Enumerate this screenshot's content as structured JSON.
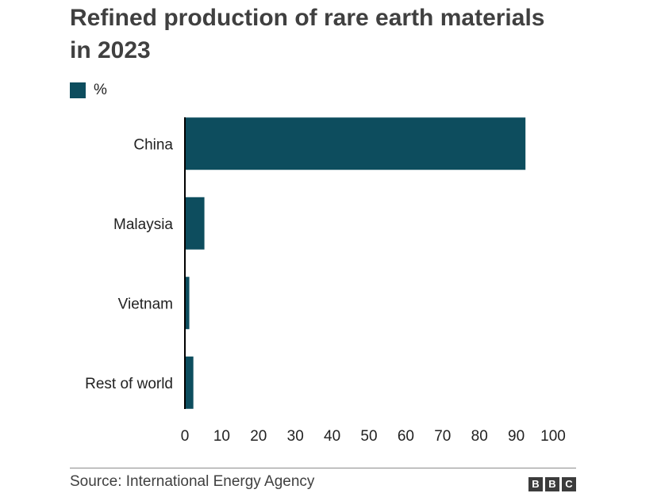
{
  "chart_data": {
    "type": "bar",
    "orientation": "horizontal",
    "title": "Refined production of rare earth materials in 2023",
    "legend": {
      "label": "%",
      "position": "top-left"
    },
    "categories": [
      "China",
      "Malaysia",
      "Vietnam",
      "Rest of world"
    ],
    "series": [
      {
        "name": "%",
        "values": [
          92.5,
          5.3,
          1.2,
          2.3
        ],
        "color": "#0d4d5e"
      }
    ],
    "xlim": [
      0,
      100
    ],
    "xticks": [
      "0",
      "10",
      "20",
      "30",
      "40",
      "50",
      "60",
      "70",
      "80",
      "90",
      "100"
    ],
    "grid": false
  },
  "footer": {
    "source": "Source: International Energy Agency",
    "logo": [
      "B",
      "B",
      "C"
    ]
  }
}
